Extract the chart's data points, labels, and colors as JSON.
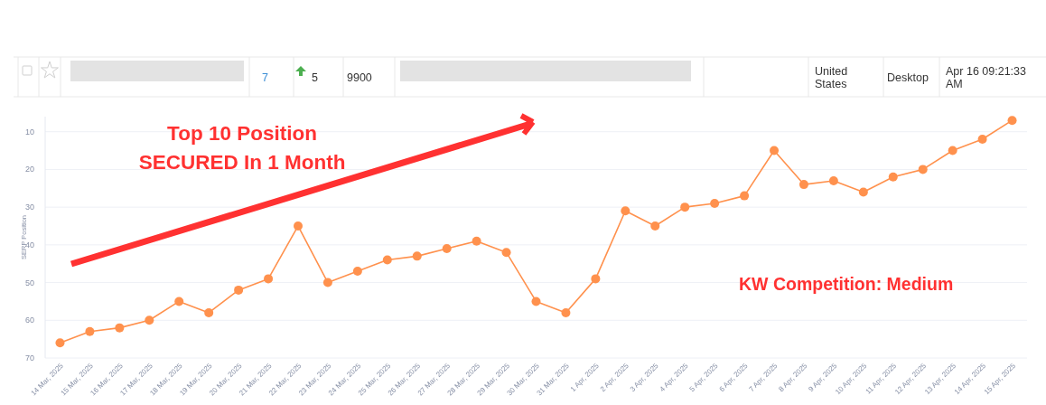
{
  "chart_data": [
    {
      "type": "other",
      "annotations": [
        "7",
        "5",
        "9900",
        "United States",
        "Desktop",
        "Apr 16 09:21:33 AM"
      ]
    },
    {
      "type": "line",
      "ylabel": "SERP Position",
      "categories": [
        "14 Mar, 2025",
        "15 Mar, 2025",
        "16 Mar, 2025",
        "17 Mar, 2025",
        "18 Mar, 2025",
        "19 Mar, 2025",
        "20 Mar, 2025",
        "21 Mar, 2025",
        "22 Mar, 2025",
        "23 Mar, 2025",
        "24 Mar, 2025",
        "25 Mar, 2025",
        "26 Mar, 2025",
        "27 Mar, 2025",
        "28 Mar, 2025",
        "29 Mar, 2025",
        "30 Mar, 2025",
        "31 Mar, 2025",
        "1 Apr, 2025",
        "2 Apr, 2025",
        "3 Apr, 2025",
        "4 Apr, 2025",
        "5 Apr, 2025",
        "6 Apr, 2025",
        "7 Apr, 2025",
        "8 Apr, 2025",
        "9 Apr, 2025",
        "10 Apr, 2025",
        "11 Apr, 2025",
        "12 Apr, 2025",
        "13 Apr, 2025",
        "14 Apr, 2025",
        "15 Apr, 2025"
      ],
      "values": [
        66,
        63,
        62,
        60,
        55,
        58,
        52,
        49,
        35,
        50,
        47,
        44,
        43,
        41,
        39,
        42,
        55,
        58,
        49,
        31,
        35,
        30,
        29,
        27,
        15,
        24,
        23,
        26,
        22,
        20,
        15,
        12,
        7
      ],
      "color": "#ff914d",
      "ylim": [
        70,
        6
      ],
      "yticks": [
        10,
        20,
        30,
        40,
        50,
        60,
        70
      ],
      "grid": "y",
      "marker": "circle",
      "annotations": [
        "Top 10 Position\nSECURED In 1 Month",
        "KW Competition: Medium"
      ]
    }
  ]
}
